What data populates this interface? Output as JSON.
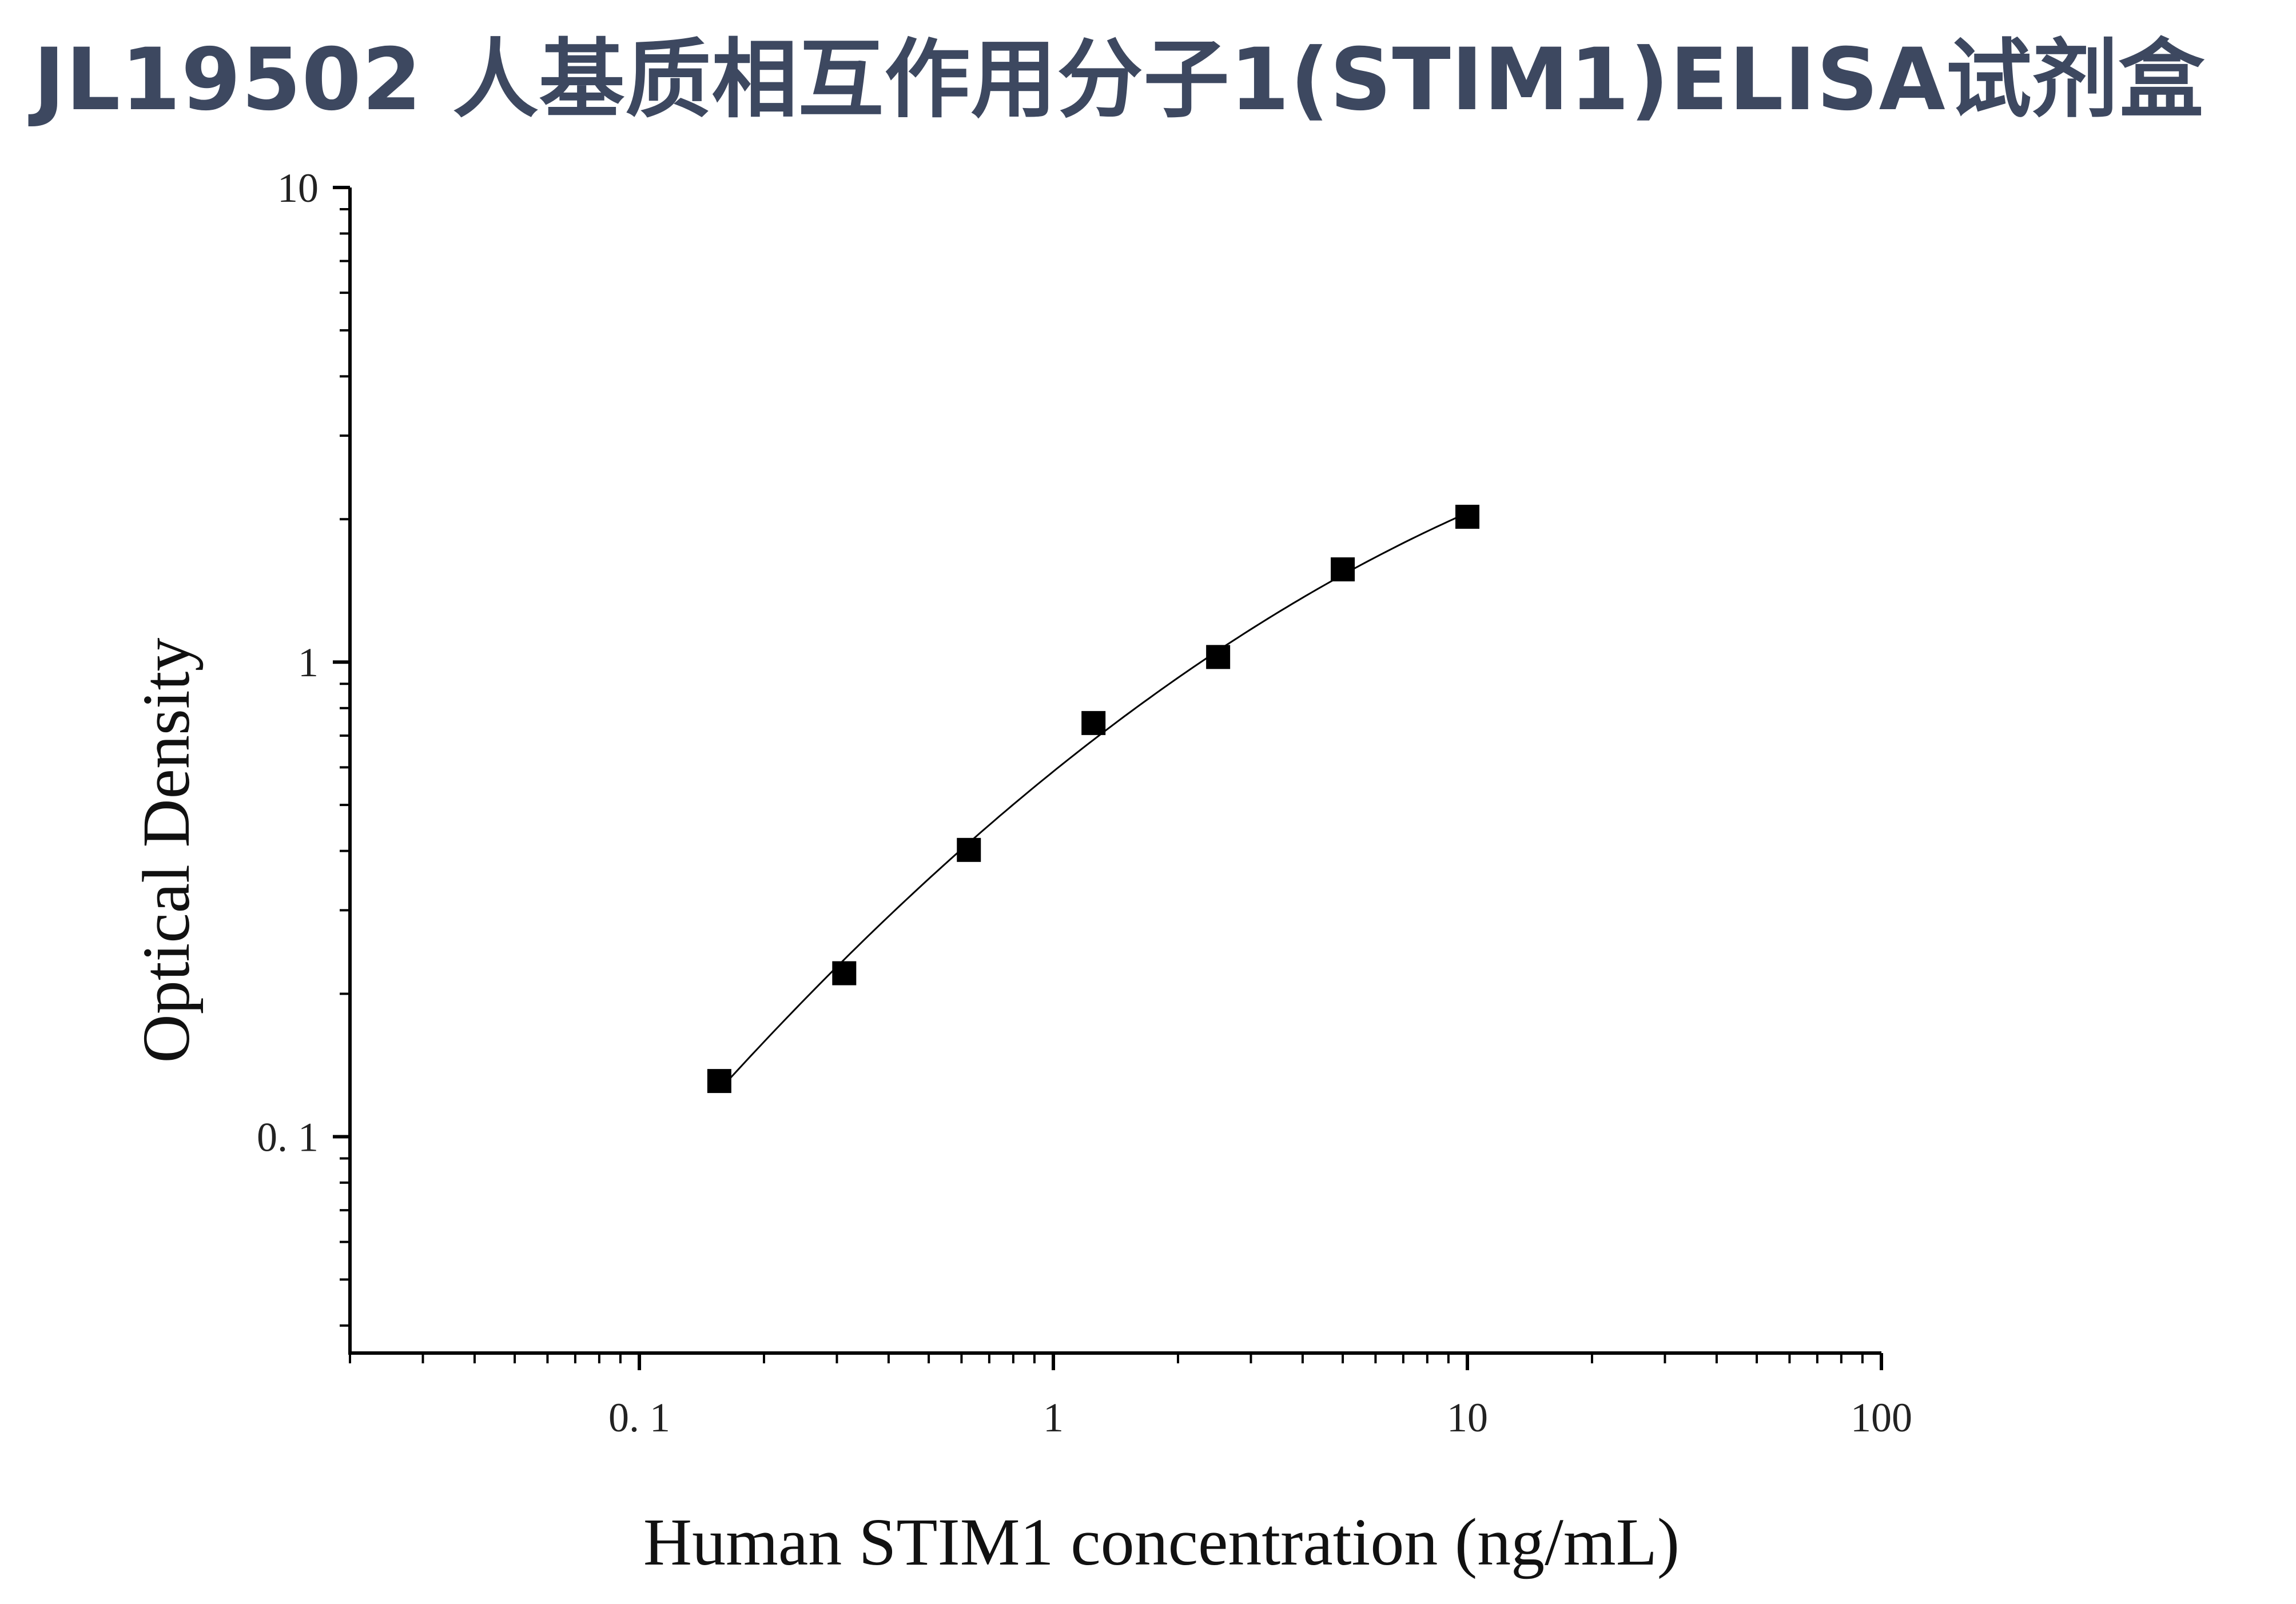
{
  "page": {
    "title": "JL19502 人基质相互作用分子1(STIM1)ELISA试剂盒"
  },
  "chart_data": {
    "type": "scatter",
    "xlabel": "Human STIM1 concentration (ng/mL)",
    "ylabel": "Optical Density",
    "x_scale": "log",
    "y_scale": "log",
    "xlim": [
      0.02,
      100
    ],
    "ylim": [
      0.035,
      10
    ],
    "x_ticks": [
      {
        "value": 0.1,
        "label": "0. 1"
      },
      {
        "value": 1,
        "label": "1"
      },
      {
        "value": 10,
        "label": "10"
      },
      {
        "value": 100,
        "label": "100"
      }
    ],
    "y_ticks": [
      {
        "value": 0.1,
        "label": "0. 1"
      },
      {
        "value": 1,
        "label": "1"
      },
      {
        "value": 10,
        "label": "10"
      }
    ],
    "grid": false,
    "fit_curve": true,
    "marker": "square",
    "color": "#000000",
    "series": [
      {
        "x": [
          0.156,
          0.3125,
          0.625,
          1.25,
          2.5,
          5,
          10
        ],
        "y": [
          0.131,
          0.221,
          0.402,
          0.744,
          1.025,
          1.568,
          2.024
        ]
      }
    ]
  }
}
